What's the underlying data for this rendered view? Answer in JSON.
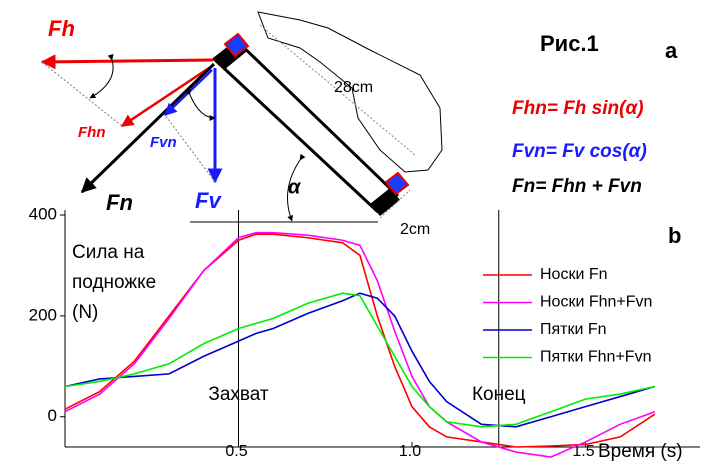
{
  "diagram": {
    "title": "Рис.1",
    "panel_label": "a",
    "force_labels": [
      "Fh",
      "Fhn",
      "Fvn",
      "Fn",
      "Fv"
    ],
    "angle": "α",
    "length": "28cm",
    "width": "2cm",
    "formulas": [
      "Fhn= Fh sin(α)",
      "Fvn= Fv cos(α)",
      "Fn= Fhn + Fvn"
    ]
  },
  "chart_data": {
    "type": "line",
    "panel_label": "b",
    "ylabel": [
      "Сила на",
      "подножке",
      "(N)"
    ],
    "xlabel": "Время (s)",
    "x": [
      0,
      0.1,
      0.2,
      0.3,
      0.4,
      0.5,
      0.55,
      0.6,
      0.7,
      0.8,
      0.85,
      0.9,
      0.95,
      1.0,
      1.05,
      1.1,
      1.2,
      1.3,
      1.4,
      1.5,
      1.6,
      1.7
    ],
    "series": [
      {
        "name": "Носки Fn",
        "color": "#ff0000",
        "values": [
          15,
          50,
          110,
          200,
          290,
          350,
          362,
          362,
          355,
          345,
          320,
          200,
          100,
          20,
          -20,
          -40,
          -50,
          -60,
          -58,
          -55,
          -40,
          5
        ]
      },
      {
        "name": "Носки Fhn+Fvn",
        "color": "#ff00ff",
        "values": [
          10,
          45,
          105,
          195,
          290,
          355,
          365,
          365,
          360,
          350,
          340,
          270,
          170,
          80,
          20,
          -10,
          -50,
          -70,
          -80,
          -50,
          -15,
          10
        ]
      },
      {
        "name": "Пятки Fn",
        "color": "#0000cc",
        "values": [
          60,
          75,
          80,
          85,
          120,
          150,
          165,
          175,
          205,
          230,
          245,
          235,
          200,
          130,
          70,
          30,
          -15,
          -20,
          0,
          20,
          40,
          60
        ]
      },
      {
        "name": "Пятки Fhn+Fvn",
        "color": "#00ee00",
        "values": [
          60,
          70,
          85,
          105,
          145,
          175,
          185,
          195,
          225,
          245,
          240,
          180,
          120,
          60,
          20,
          -10,
          -20,
          -15,
          10,
          35,
          45,
          60
        ]
      }
    ],
    "annotations": [
      {
        "text": "Захват",
        "x": 0.5
      },
      {
        "text": "Конец",
        "x": 1.25
      }
    ],
    "xlim": [
      0,
      1.83
    ],
    "ylim": [
      -60,
      410
    ],
    "xticks": [
      0.5,
      {
        "value": 1,
        "label": "1.0"
      },
      1.5
    ],
    "yticks": [
      0,
      200,
      400
    ]
  }
}
